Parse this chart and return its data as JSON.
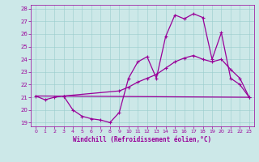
{
  "xlabel": "Windchill (Refroidissement éolien,°C)",
  "xlim": [
    -0.5,
    23.5
  ],
  "ylim": [
    18.7,
    28.3
  ],
  "yticks": [
    19,
    20,
    21,
    22,
    23,
    24,
    25,
    26,
    27,
    28
  ],
  "xticks": [
    0,
    1,
    2,
    3,
    4,
    5,
    6,
    7,
    8,
    9,
    10,
    11,
    12,
    13,
    14,
    15,
    16,
    17,
    18,
    19,
    20,
    21,
    22,
    23
  ],
  "bg_color": "#cce8e8",
  "grid_color": "#99cccc",
  "line_color": "#990099",
  "series1_x": [
    0,
    1,
    2,
    3,
    4,
    5,
    6,
    7,
    8,
    9,
    10,
    11,
    12,
    13,
    14,
    15,
    16,
    17,
    18,
    19,
    20,
    21,
    22,
    23
  ],
  "series1_y": [
    21.1,
    20.8,
    21.0,
    21.1,
    20.0,
    19.5,
    19.3,
    19.2,
    19.0,
    19.8,
    22.5,
    23.8,
    24.2,
    22.5,
    25.8,
    27.5,
    27.2,
    27.6,
    27.3,
    24.0,
    26.1,
    22.5,
    22.0,
    21.0
  ],
  "series2_x": [
    0,
    23
  ],
  "series2_y": [
    21.1,
    21.0
  ],
  "series3_x": [
    3,
    9,
    10,
    11,
    12,
    13,
    14,
    15,
    16,
    17,
    18,
    19,
    20,
    21,
    22,
    23
  ],
  "series3_y": [
    21.1,
    21.5,
    21.8,
    22.2,
    22.5,
    22.8,
    23.3,
    23.8,
    24.1,
    24.3,
    24.0,
    23.8,
    24.0,
    23.2,
    22.5,
    21.0
  ]
}
